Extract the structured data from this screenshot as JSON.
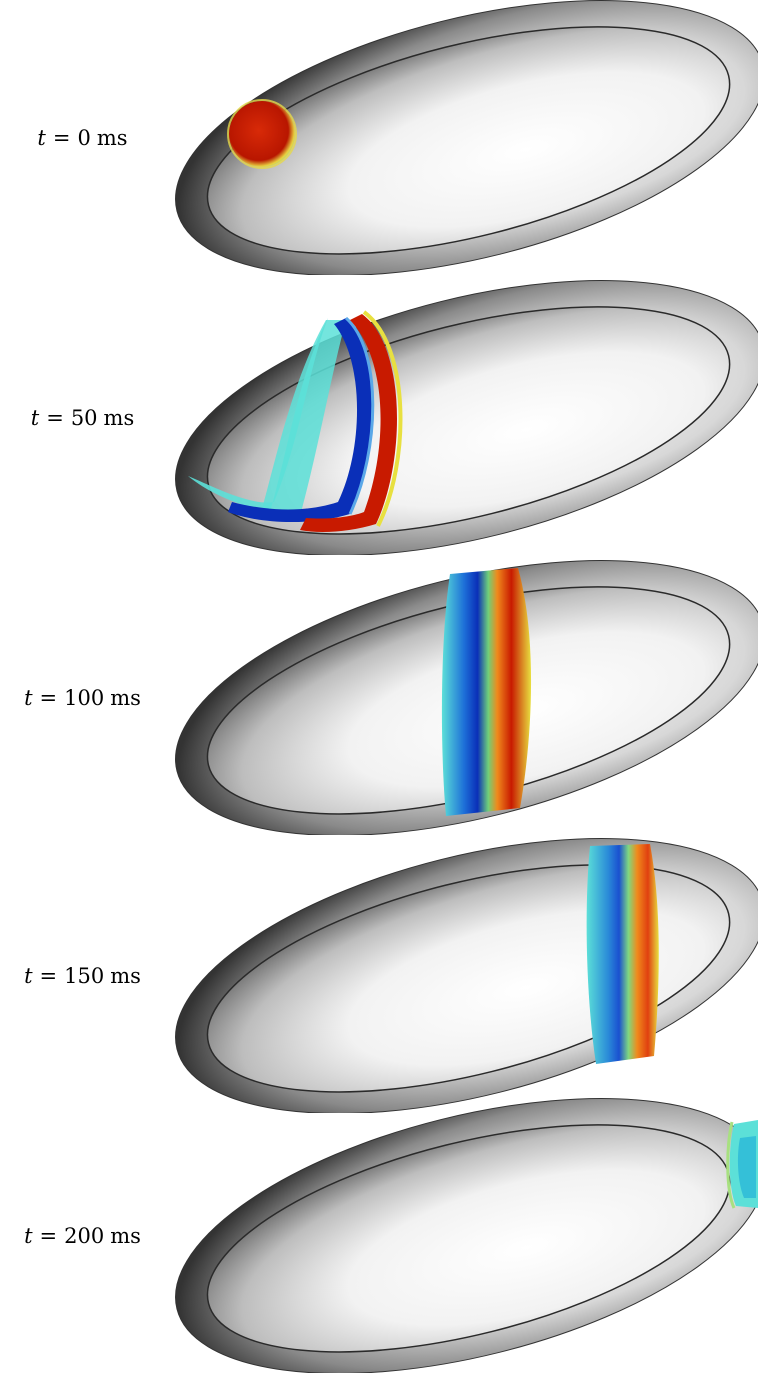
{
  "figure": {
    "panels": [
      {
        "t_value": "0",
        "unit": "ms"
      },
      {
        "t_value": "50",
        "unit": "ms"
      },
      {
        "t_value": "100",
        "unit": "ms"
      },
      {
        "t_value": "150",
        "unit": "ms"
      },
      {
        "t_value": "200",
        "unit": "ms"
      }
    ],
    "time_symbol": "t",
    "equals_sign": "="
  },
  "colors": {
    "shell_dark": "#3a3a3a",
    "shell_light": "#ffffff",
    "wave_red": "#c81a00",
    "wave_orange": "#f08a1c",
    "wave_yellow": "#e8e040",
    "wave_green": "#6fd07a",
    "wave_cyan": "#5ce0d8",
    "wave_blue": "#0a2fb8"
  }
}
